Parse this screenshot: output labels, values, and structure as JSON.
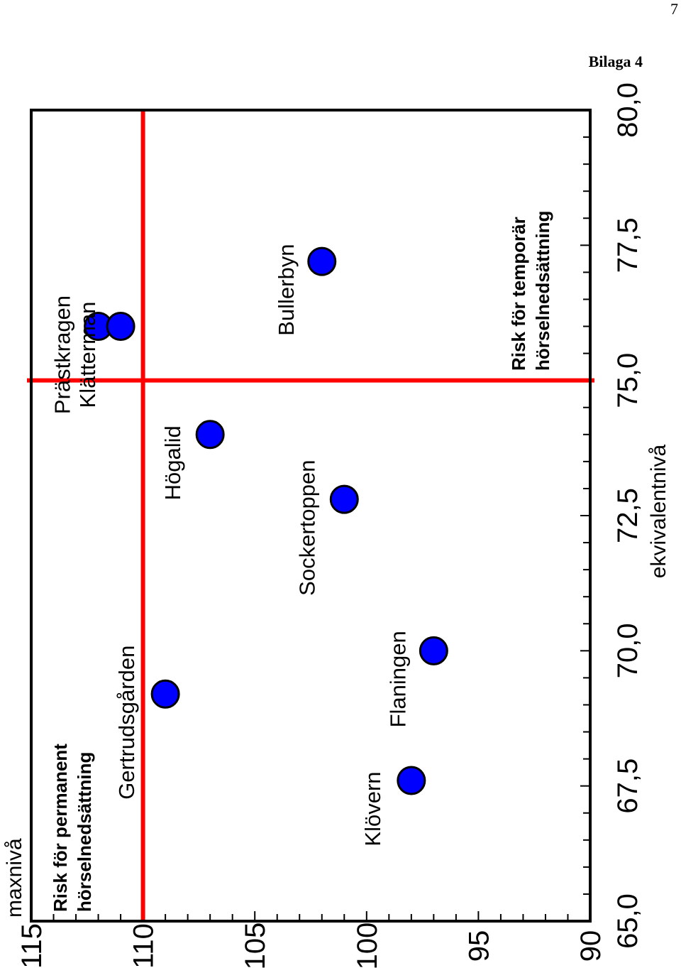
{
  "page_number": "7",
  "appendix_label": "Bilaga 4",
  "chart_data": {
    "type": "scatter",
    "xlabel": "ekvivalentnivå",
    "ylabel": "maxnivå",
    "xlim": [
      65,
      80
    ],
    "ylim": [
      90,
      115
    ],
    "x_ticks": [
      "65,0",
      "67,5",
      "70,0",
      "72,5",
      "75,0",
      "77,5",
      "80,0"
    ],
    "y_ticks": [
      "90",
      "95",
      "100",
      "105",
      "110",
      "115"
    ],
    "points": [
      {
        "label": "Prästkragen",
        "x": 76.0,
        "y": 112.0
      },
      {
        "label": "Klätterman",
        "x": 76.0,
        "y": 111.0
      },
      {
        "label": "Bullerbyn",
        "x": 77.2,
        "y": 102.0
      },
      {
        "label": "Högalid",
        "x": 74.0,
        "y": 107.0
      },
      {
        "label": "Sockertoppen",
        "x": 72.8,
        "y": 101.0
      },
      {
        "label": "Gertrudsgården",
        "x": 69.2,
        "y": 109.0
      },
      {
        "label": "Flaningen",
        "x": 70.0,
        "y": 97.0
      },
      {
        "label": "Klövern",
        "x": 67.6,
        "y": 98.0
      }
    ],
    "threshold_lines": [
      {
        "axis": "y",
        "value": 110,
        "label": "Risk för permanent hörselnedsättning"
      },
      {
        "axis": "x",
        "value": 75.0,
        "label": "Risk för temporär hörselnedsättning"
      }
    ],
    "marker_color": "#0000ff",
    "threshold_color": "#ff0000",
    "orientation": "rotated 90° counter-clockwise on page"
  }
}
